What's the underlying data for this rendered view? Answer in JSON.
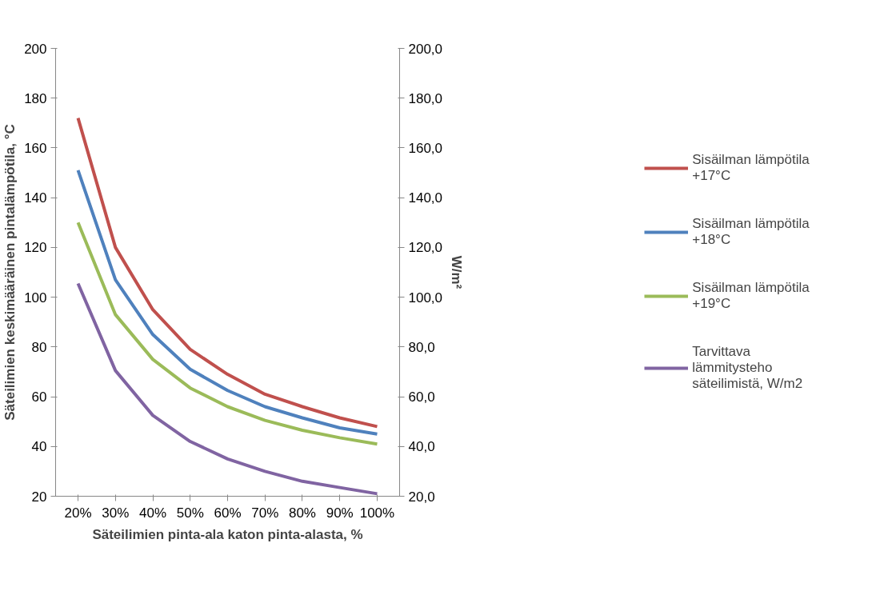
{
  "chart_data": {
    "type": "line",
    "xlabel": "Säteilimien pinta-ala katon pinta-alasta, %",
    "ylabel": "Säteilimien keskimääräinen pintalämpötila, °C",
    "y2label": "W/m²",
    "categories": [
      "20%",
      "30%",
      "40%",
      "50%",
      "60%",
      "70%",
      "80%",
      "90%",
      "100%"
    ],
    "series": [
      {
        "name": "Sisäilman lämpötila +17°C",
        "color": "#c0504d",
        "values": [
          172,
          120,
          95,
          79,
          69,
          61,
          56,
          51.5,
          48
        ]
      },
      {
        "name": "Sisäilman lämpötila +18°C",
        "color": "#4f81bd",
        "values": [
          151,
          107,
          85,
          71,
          62.5,
          56,
          51.5,
          47.5,
          45
        ]
      },
      {
        "name": "Sisäilman lämpötila +19°C",
        "color": "#9bbb59",
        "values": [
          130,
          93,
          75,
          63.5,
          56,
          50.5,
          46.5,
          43.5,
          41
        ]
      },
      {
        "name": "Tarvittava lämmitysteho säteilimistä, W/m2",
        "color": "#8064a2",
        "values": [
          105.5,
          70.5,
          52.5,
          42,
          35,
          30,
          26,
          23.5,
          21
        ]
      }
    ],
    "ylim": [
      20,
      200
    ],
    "yticks": [
      20,
      40,
      60,
      80,
      100,
      120,
      140,
      160,
      180,
      200
    ],
    "y2lim": [
      20,
      200
    ],
    "y2ticks": [
      {
        "value": 20,
        "label": "20,0"
      },
      {
        "value": 40,
        "label": "40,0"
      },
      {
        "value": 60,
        "label": "60,0"
      },
      {
        "value": 80,
        "label": "80,0"
      },
      {
        "value": 100,
        "label": "100,0"
      },
      {
        "value": 120,
        "label": "120,0"
      },
      {
        "value": 140,
        "label": "140,0"
      },
      {
        "value": 160,
        "label": "160,0"
      },
      {
        "value": 180,
        "label": "180,0"
      },
      {
        "value": 200,
        "label": "200,0"
      }
    ],
    "grid": false,
    "legend": "right",
    "marker": "none",
    "line_style": "solid"
  }
}
